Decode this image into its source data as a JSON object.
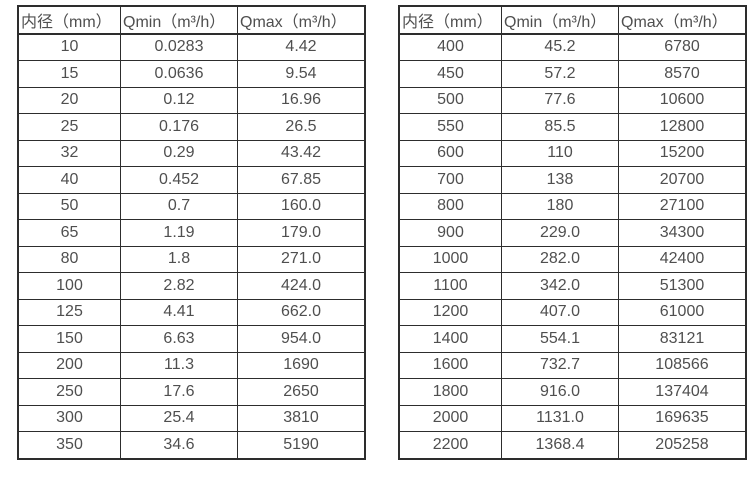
{
  "colors": {
    "background": "#ffffff",
    "text": "#4f4f4f",
    "border": "#2d2d2d"
  },
  "tables": [
    {
      "name": "flow-range-table-small-diameters",
      "headers": [
        "内径（mm）",
        "Qmin（m³/h）",
        "Qmax（m³/h）"
      ],
      "rows": [
        [
          "10",
          "0.0283",
          "4.42"
        ],
        [
          "15",
          "0.0636",
          "9.54"
        ],
        [
          "20",
          "0.12",
          "16.96"
        ],
        [
          "25",
          "0.176",
          "26.5"
        ],
        [
          "32",
          "0.29",
          "43.42"
        ],
        [
          "40",
          "0.452",
          "67.85"
        ],
        [
          "50",
          "0.7",
          "160.0"
        ],
        [
          "65",
          "1.19",
          "179.0"
        ],
        [
          "80",
          "1.8",
          "271.0"
        ],
        [
          "100",
          "2.82",
          "424.0"
        ],
        [
          "125",
          "4.41",
          "662.0"
        ],
        [
          "150",
          "6.63",
          "954.0"
        ],
        [
          "200",
          "11.3",
          "1690"
        ],
        [
          "250",
          "17.6",
          "2650"
        ],
        [
          "300",
          "25.4",
          "3810"
        ],
        [
          "350",
          "34.6",
          "5190"
        ]
      ]
    },
    {
      "name": "flow-range-table-large-diameters",
      "headers": [
        "内径（mm）",
        "Qmin（m³/h）",
        "Qmax（m³/h）"
      ],
      "rows": [
        [
          "400",
          "45.2",
          "6780"
        ],
        [
          "450",
          "57.2",
          "8570"
        ],
        [
          "500",
          "77.6",
          "10600"
        ],
        [
          "550",
          "85.5",
          "12800"
        ],
        [
          "600",
          "110",
          "15200"
        ],
        [
          "700",
          "138",
          "20700"
        ],
        [
          "800",
          "180",
          "27100"
        ],
        [
          "900",
          "229.0",
          "34300"
        ],
        [
          "1000",
          "282.0",
          "42400"
        ],
        [
          "1100",
          "342.0",
          "51300"
        ],
        [
          "1200",
          "407.0",
          "61000"
        ],
        [
          "1400",
          "554.1",
          "83121"
        ],
        [
          "1600",
          "732.7",
          "108566"
        ],
        [
          "1800",
          "916.0",
          "137404"
        ],
        [
          "2000",
          "1131.0",
          "169635"
        ],
        [
          "2200",
          "1368.4",
          "205258"
        ]
      ]
    }
  ]
}
